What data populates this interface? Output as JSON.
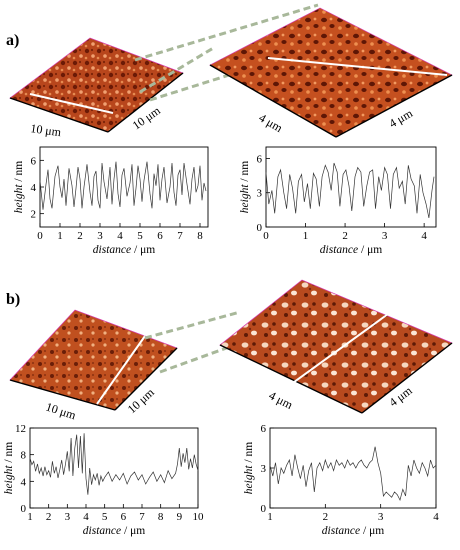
{
  "panels": [
    {
      "label": "a)",
      "overview_size_x": "10 μm",
      "overview_size_y": "10 μm",
      "zoom_size_x": "4 μm",
      "zoom_size_y": "4 μm",
      "colors": {
        "surface_dark": "#6b1a06",
        "surface_mid": "#b8461c",
        "surface_light": "#f0a070",
        "connector": "#a8b89a"
      }
    },
    {
      "label": "b)",
      "overview_size_x": "10 μm",
      "overview_size_y": "10 μm",
      "zoom_size_x": "4 μm",
      "zoom_size_y": "4 μm",
      "colors": {
        "surface_dark": "#5e1a06",
        "surface_mid": "#b84a1e",
        "surface_light": "#f6d8c0",
        "connector": "#a8b89a"
      }
    }
  ],
  "chart_data": [
    {
      "type": "line",
      "id": "a-left",
      "xlabel_italic": "distance",
      "xlabel_unit": " / μm",
      "ylabel_italic": "height",
      "ylabel_unit": " / nm",
      "xlim": [
        0,
        8.4
      ],
      "ylim": [
        1,
        7
      ],
      "xticks": [
        0,
        1,
        2,
        3,
        4,
        5,
        6,
        7,
        8
      ],
      "yticks": [
        2,
        4,
        6
      ],
      "x": [
        0,
        0.15,
        0.3,
        0.4,
        0.5,
        0.6,
        0.75,
        0.9,
        1.0,
        1.1,
        1.2,
        1.3,
        1.45,
        1.6,
        1.7,
        1.8,
        1.9,
        2.0,
        2.1,
        2.2,
        2.35,
        2.5,
        2.6,
        2.7,
        2.8,
        2.9,
        3.0,
        3.1,
        3.2,
        3.35,
        3.5,
        3.6,
        3.7,
        3.8,
        3.9,
        4.0,
        4.1,
        4.2,
        4.35,
        4.5,
        4.6,
        4.7,
        4.8,
        4.9,
        5.0,
        5.1,
        5.2,
        5.35,
        5.5,
        5.6,
        5.7,
        5.8,
        5.9,
        6.0,
        6.1,
        6.2,
        6.35,
        6.5,
        6.6,
        6.7,
        6.8,
        6.9,
        7.0,
        7.1,
        7.2,
        7.35,
        7.5,
        7.6,
        7.7,
        7.8,
        7.9,
        8.0,
        8.1,
        8.2,
        8.3
      ],
      "y": [
        4.5,
        2.3,
        4.2,
        5.3,
        3.1,
        2.4,
        4.8,
        5.6,
        4.0,
        3.2,
        4.6,
        2.6,
        5.4,
        4.1,
        2.5,
        3.9,
        5.5,
        4.6,
        2.4,
        4.0,
        5.7,
        3.6,
        2.6,
        4.8,
        5.2,
        3.0,
        2.4,
        5.8,
        4.4,
        3.1,
        5.5,
        2.7,
        4.6,
        5.9,
        3.5,
        2.5,
        4.9,
        5.4,
        3.3,
        4.3,
        5.7,
        2.6,
        3.9,
        5.6,
        4.6,
        2.9,
        4.5,
        5.9,
        3.5,
        2.4,
        5.0,
        4.1,
        5.7,
        3.0,
        4.6,
        5.5,
        2.8,
        4.0,
        5.8,
        3.6,
        2.6,
        4.9,
        5.3,
        3.4,
        5.8,
        4.2,
        2.7,
        4.6,
        5.5,
        3.6,
        4.1,
        5.6,
        3.0,
        4.3,
        3.7
      ]
    },
    {
      "type": "line",
      "id": "a-right",
      "xlabel_italic": "distance",
      "xlabel_unit": " / μm",
      "ylabel_italic": "height",
      "ylabel_unit": " / nm",
      "xlim": [
        0,
        4.3
      ],
      "ylim": [
        0,
        7
      ],
      "xticks": [
        0,
        1,
        2,
        3,
        4
      ],
      "yticks": [
        0,
        3,
        6
      ],
      "x": [
        0,
        0.07,
        0.15,
        0.22,
        0.3,
        0.37,
        0.45,
        0.52,
        0.6,
        0.67,
        0.75,
        0.82,
        0.9,
        0.97,
        1.05,
        1.12,
        1.2,
        1.27,
        1.35,
        1.42,
        1.5,
        1.57,
        1.65,
        1.72,
        1.8,
        1.87,
        1.95,
        2.02,
        2.1,
        2.17,
        2.25,
        2.32,
        2.4,
        2.47,
        2.55,
        2.62,
        2.7,
        2.77,
        2.85,
        2.92,
        3.0,
        3.07,
        3.15,
        3.22,
        3.3,
        3.37,
        3.45,
        3.52,
        3.6,
        3.67,
        3.75,
        3.82,
        3.9,
        3.97,
        4.05,
        4.12,
        4.2,
        4.25
      ],
      "y": [
        4.8,
        2.0,
        3.2,
        1.2,
        4.4,
        5.0,
        3.0,
        1.6,
        4.6,
        3.4,
        1.2,
        4.0,
        4.6,
        2.2,
        3.8,
        1.6,
        4.7,
        4.2,
        1.8,
        4.4,
        5.4,
        4.8,
        3.2,
        5.6,
        4.8,
        1.8,
        4.6,
        5.0,
        3.6,
        1.4,
        4.4,
        5.2,
        4.8,
        1.8,
        3.6,
        4.8,
        5.0,
        1.6,
        4.4,
        3.2,
        5.2,
        4.6,
        1.6,
        4.6,
        5.2,
        3.4,
        4.0,
        2.0,
        5.4,
        4.2,
        3.6,
        1.2,
        4.6,
        3.0,
        2.0,
        0.8,
        3.2,
        4.4
      ]
    },
    {
      "type": "line",
      "id": "b-left",
      "xlabel_italic": "distance",
      "xlabel_unit": " / μm",
      "ylabel_italic": "height",
      "ylabel_unit": " / nm",
      "xlim": [
        1,
        10
      ],
      "ylim": [
        0,
        12
      ],
      "xticks": [
        1,
        2,
        3,
        4,
        5,
        6,
        7,
        8,
        9,
        10
      ],
      "yticks": [
        0,
        4,
        8,
        12
      ],
      "x": [
        1.0,
        1.1,
        1.2,
        1.3,
        1.4,
        1.5,
        1.6,
        1.7,
        1.8,
        1.9,
        2.0,
        2.1,
        2.2,
        2.3,
        2.4,
        2.5,
        2.6,
        2.7,
        2.8,
        2.9,
        3.0,
        3.1,
        3.2,
        3.3,
        3.4,
        3.5,
        3.6,
        3.7,
        3.8,
        3.9,
        4.0,
        4.1,
        4.2,
        4.3,
        4.4,
        4.5,
        4.6,
        4.7,
        4.8,
        4.9,
        5.0,
        5.2,
        5.4,
        5.6,
        5.8,
        6.0,
        6.2,
        6.4,
        6.6,
        6.8,
        7.0,
        7.2,
        7.4,
        7.6,
        7.8,
        8.0,
        8.2,
        8.4,
        8.6,
        8.8,
        8.9,
        9.0,
        9.1,
        9.2,
        9.3,
        9.4,
        9.5,
        9.6,
        9.7,
        9.8,
        9.9,
        10.0
      ],
      "y": [
        7.5,
        6.5,
        7.0,
        5.5,
        6.6,
        5.2,
        6.0,
        4.8,
        6.2,
        5.0,
        5.6,
        4.6,
        7.0,
        5.2,
        6.2,
        4.5,
        5.8,
        7.2,
        5.0,
        6.6,
        8.5,
        5.5,
        10.5,
        4.8,
        9.0,
        11.0,
        6.0,
        10.8,
        5.2,
        11.2,
        4.4,
        2.0,
        6.0,
        3.5,
        5.0,
        4.2,
        5.2,
        3.4,
        4.8,
        4.0,
        4.6,
        5.4,
        4.0,
        5.0,
        4.2,
        5.2,
        3.6,
        4.8,
        5.4,
        4.2,
        5.0,
        3.6,
        4.6,
        5.4,
        4.0,
        5.0,
        3.8,
        5.6,
        4.4,
        5.2,
        6.6,
        9.0,
        6.2,
        8.2,
        6.8,
        9.0,
        5.8,
        7.4,
        6.0,
        8.0,
        6.6,
        5.6
      ]
    },
    {
      "type": "line",
      "id": "b-right",
      "xlabel_italic": "distance",
      "xlabel_unit": " / μm",
      "ylabel_italic": "height",
      "ylabel_unit": " / nm",
      "xlim": [
        1,
        4
      ],
      "ylim": [
        0,
        6
      ],
      "xticks": [
        1,
        2,
        3,
        4
      ],
      "yticks": [
        0,
        3,
        6
      ],
      "x": [
        1.0,
        1.05,
        1.1,
        1.15,
        1.2,
        1.25,
        1.3,
        1.35,
        1.4,
        1.45,
        1.5,
        1.55,
        1.6,
        1.65,
        1.7,
        1.75,
        1.8,
        1.85,
        1.9,
        1.95,
        2.0,
        2.05,
        2.1,
        2.15,
        2.2,
        2.25,
        2.3,
        2.35,
        2.4,
        2.45,
        2.5,
        2.55,
        2.6,
        2.65,
        2.7,
        2.75,
        2.8,
        2.85,
        2.9,
        2.95,
        3.0,
        3.05,
        3.1,
        3.15,
        3.2,
        3.25,
        3.3,
        3.35,
        3.4,
        3.45,
        3.5,
        3.55,
        3.6,
        3.65,
        3.7,
        3.75,
        3.8,
        3.85,
        3.9,
        3.95,
        4.0
      ],
      "y": [
        3.2,
        2.4,
        3.4,
        1.8,
        3.0,
        2.6,
        3.2,
        3.6,
        2.4,
        4.0,
        3.0,
        2.2,
        3.2,
        1.6,
        2.8,
        3.4,
        1.2,
        3.0,
        3.4,
        2.8,
        3.6,
        3.0,
        3.4,
        2.8,
        3.6,
        3.2,
        3.4,
        3.0,
        3.6,
        3.2,
        3.4,
        3.0,
        3.4,
        3.6,
        3.2,
        3.0,
        3.4,
        3.6,
        4.6,
        3.4,
        2.6,
        0.9,
        1.2,
        1.0,
        0.8,
        1.2,
        1.0,
        0.6,
        1.4,
        0.9,
        3.2,
        2.4,
        3.6,
        3.0,
        2.6,
        3.4,
        3.0,
        2.4,
        3.6,
        3.0,
        3.2
      ]
    }
  ]
}
